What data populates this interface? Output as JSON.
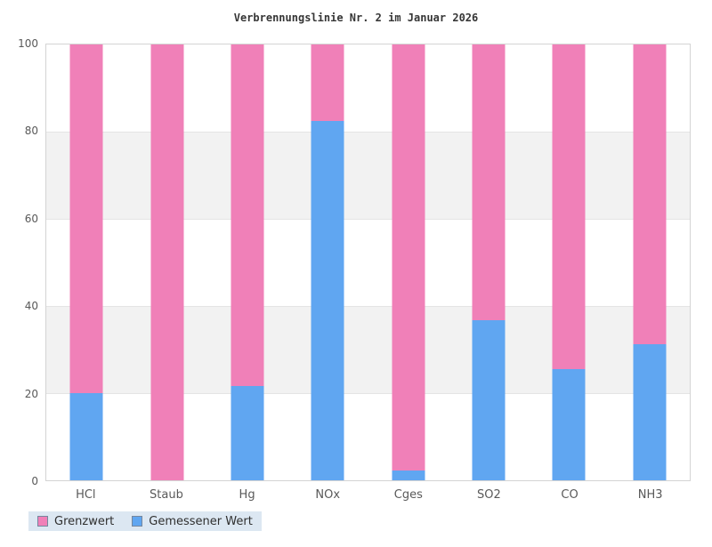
{
  "chart_data": {
    "type": "bar",
    "stacked": true,
    "title": "Verbrennungslinie Nr. 2 im Januar 2026",
    "categories": [
      "HCl",
      "Staub",
      "Hg",
      "NOx",
      "Cges",
      "SO2",
      "CO",
      "NH3"
    ],
    "series": [
      {
        "name": "Gemessener Wert",
        "color": "#60a6f1",
        "stack_order": "bottom",
        "values": [
          20,
          0,
          21.7,
          82.5,
          2.3,
          36.7,
          25.5,
          31.3
        ]
      },
      {
        "name": "Grenzwert",
        "color": "#f080b8",
        "stack_order": "top",
        "values": [
          80,
          100,
          78.3,
          17.5,
          97.7,
          63.3,
          74.5,
          68.7
        ]
      }
    ],
    "xlabel": "",
    "ylabel": "",
    "ylim": [
      0,
      100
    ],
    "yticks": [
      0,
      20,
      40,
      60,
      80,
      100
    ],
    "grid": "horizontal, alternating shaded bands",
    "legend_position": "bottom-left",
    "legend": [
      {
        "label": "Grenzwert",
        "color": "#f080b8"
      },
      {
        "label": "Gemessener Wert",
        "color": "#60a6f1"
      }
    ],
    "colors": {
      "plot_border": "#d4d4d4",
      "band_shade": "#f2f2f2",
      "gridline": "#e4e4e4",
      "axis_text": "#595959",
      "legend_background": "#dce7f2"
    }
  }
}
